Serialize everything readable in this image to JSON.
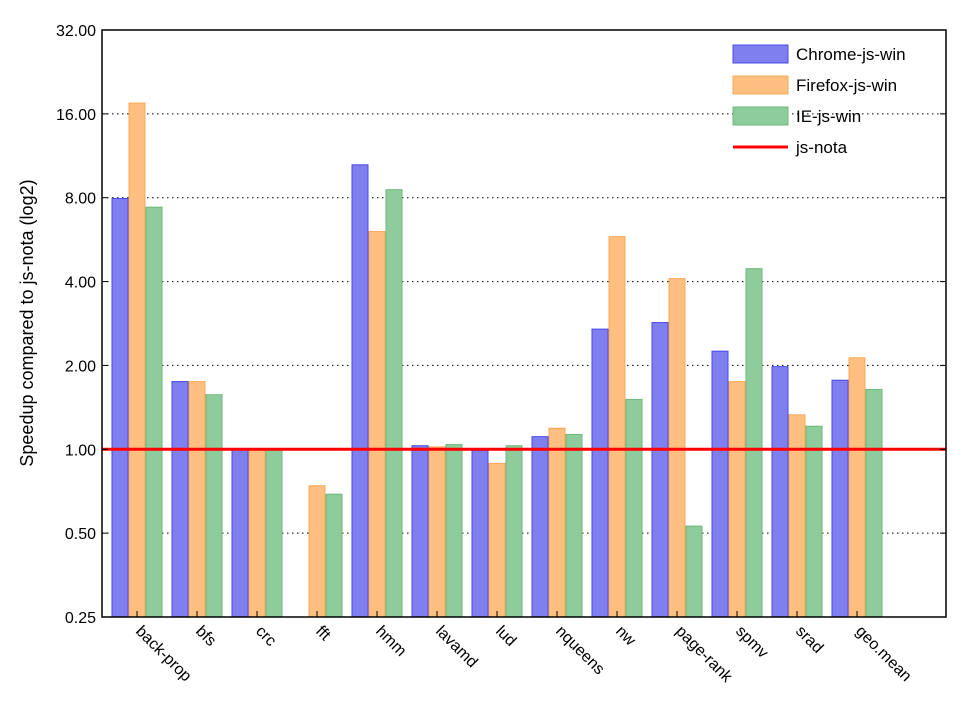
{
  "chart_data": {
    "type": "bar",
    "title": "",
    "xlabel": "",
    "ylabel": "Speedup compared to js-nota (log2)",
    "yscale": "log2",
    "ylim": [
      0.25,
      32
    ],
    "yticks": [
      "0.25",
      "0.50",
      "1.00",
      "2.00",
      "4.00",
      "8.00",
      "16.00",
      "32.00"
    ],
    "grid": "y dotted",
    "legend": "top-right",
    "categories": [
      "back-prop",
      "bfs",
      "crc",
      "fft",
      "hmm",
      "lavamd",
      "lud",
      "nqueens",
      "nw",
      "page-rank",
      "spmv",
      "srad",
      "geo.mean"
    ],
    "series": [
      {
        "name": "Chrome-js-win",
        "color": "#7f7fef",
        "edge": "#4a4ae6",
        "values": [
          7.95,
          1.75,
          1.0,
          null,
          10.5,
          1.03,
          0.99,
          1.11,
          2.7,
          2.85,
          2.25,
          1.98,
          1.77
        ]
      },
      {
        "name": "Firefox-js-win",
        "color": "#ffbf7f",
        "edge": "#f5a95a",
        "values": [
          17.5,
          1.75,
          1.0,
          0.74,
          6.05,
          1.02,
          0.89,
          1.19,
          5.8,
          4.1,
          1.75,
          1.33,
          2.13
        ]
      },
      {
        "name": "IE-js-win",
        "color": "#8fcc9c",
        "edge": "#6db97d",
        "values": [
          7.4,
          1.57,
          1.0,
          0.69,
          8.55,
          1.04,
          1.03,
          1.13,
          1.51,
          0.53,
          4.45,
          1.21,
          1.64
        ]
      }
    ],
    "reference_line": {
      "name": "js-nota",
      "value": 1.0,
      "color": "#ff0000"
    }
  }
}
